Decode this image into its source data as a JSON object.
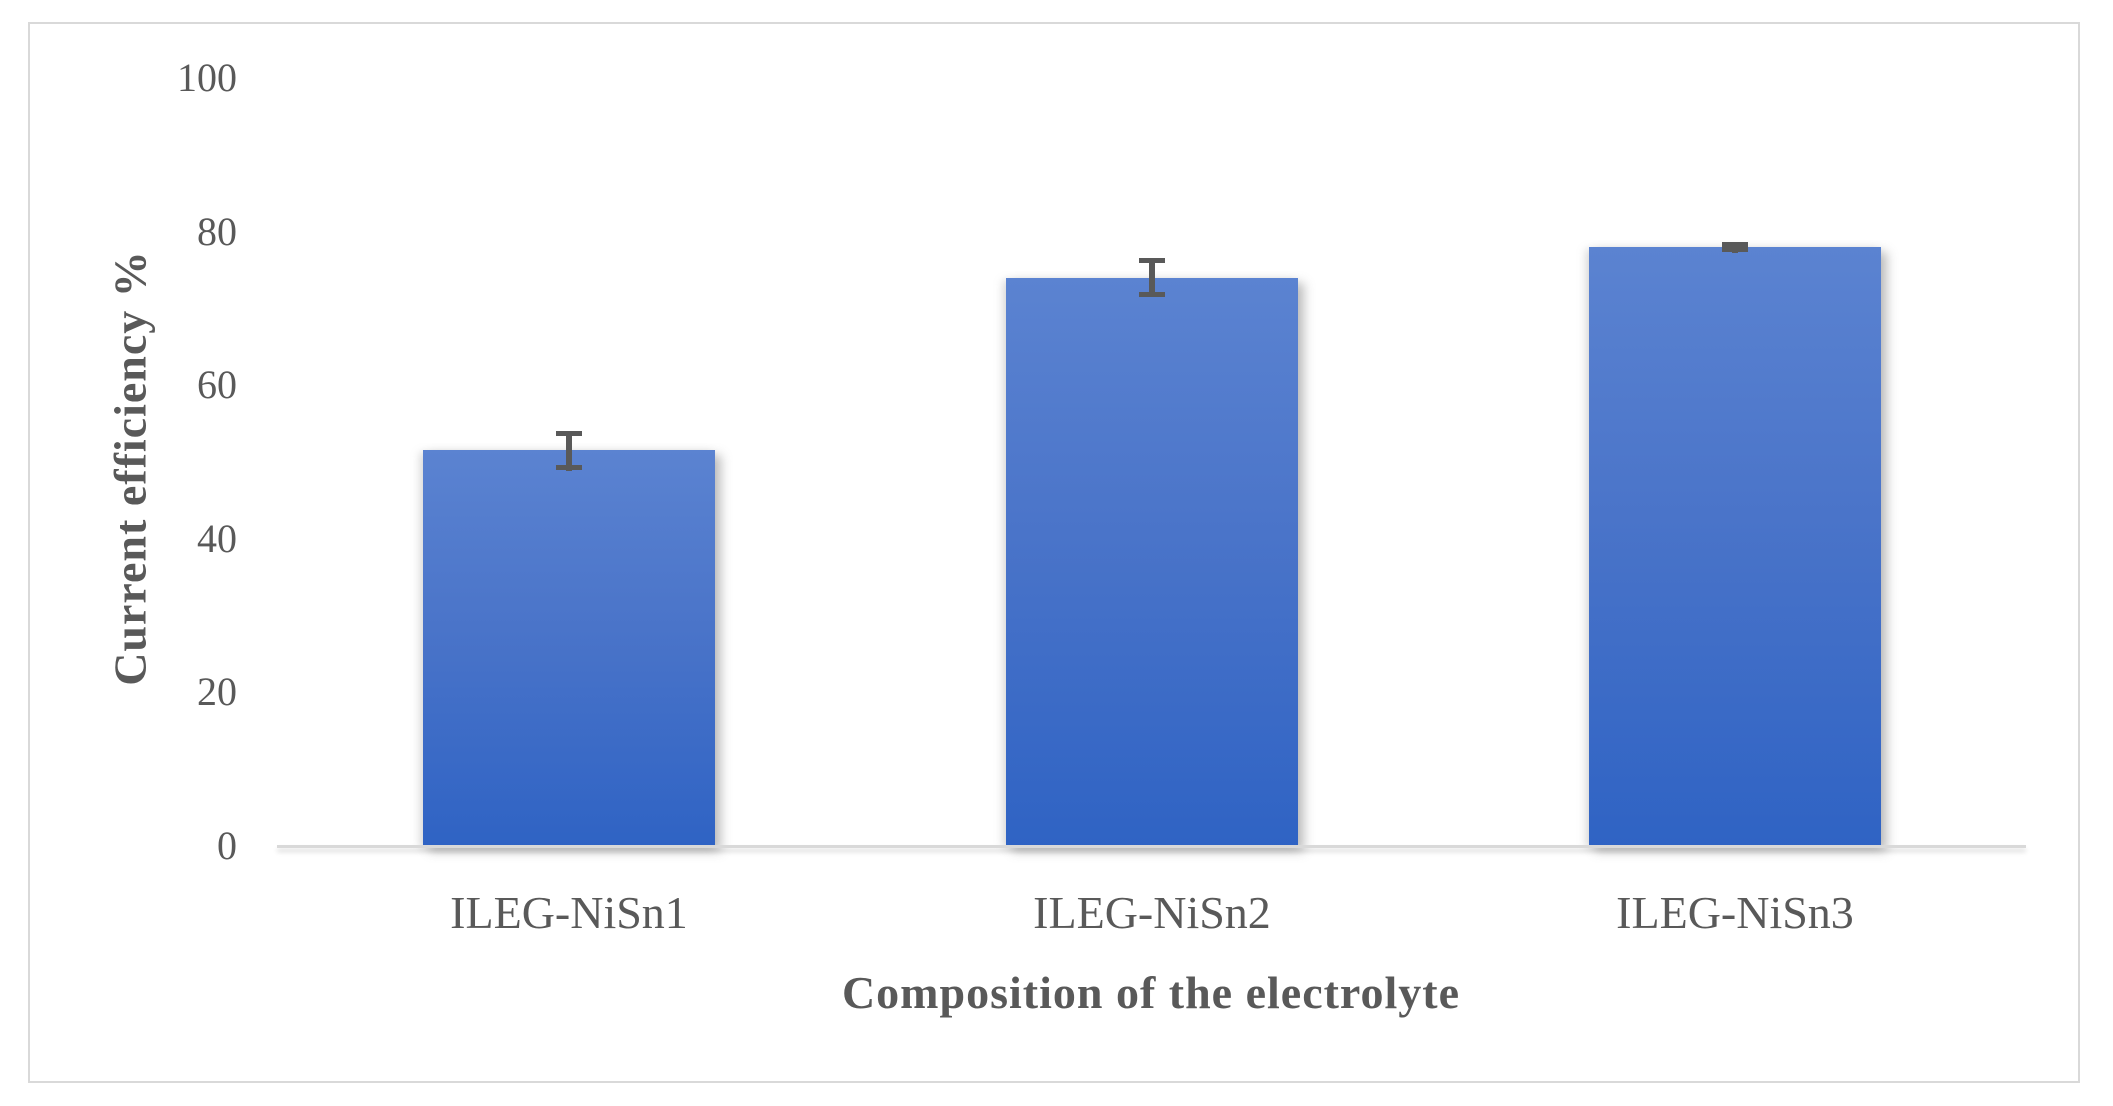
{
  "chart_data": {
    "type": "bar",
    "title": "",
    "categories": [
      "ILEG-NiSn1",
      "ILEG-NiSn2",
      "ILEG-NiSn3"
    ],
    "values": [
      51.5,
      74,
      78
    ],
    "error_bars": [
      2.6,
      2.5,
      0.7
    ],
    "xlabel": "Composition of the electrolyte",
    "ylabel": "Current efficiency %",
    "ylim": [
      0,
      100
    ],
    "yticks": [
      0,
      20,
      40,
      60,
      80,
      100
    ],
    "grid": false,
    "legend": false,
    "colors": {
      "bar_gradient_top": "#5b83d1",
      "bar_gradient_bottom": "#2f63c4",
      "axis_line": "#d9d9d9",
      "figure_border": "#d9d9d9",
      "text": "#595959",
      "error_bar": "#595959"
    }
  }
}
